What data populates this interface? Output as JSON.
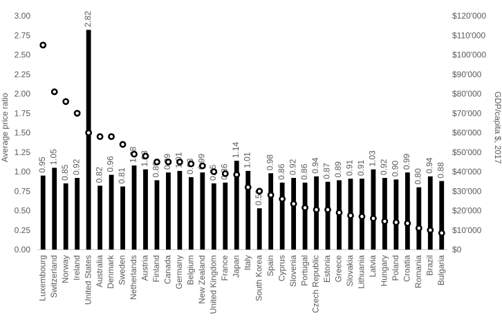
{
  "chart_data": {
    "type": "bar",
    "title": "",
    "xlabel": "",
    "ylabel": "Average price ratio",
    "y2label": "GDP/capita $, 2017",
    "ylim": [
      0,
      3.0
    ],
    "y2lim": [
      0,
      120000
    ],
    "yticks": [
      "0.00",
      "0.25",
      "0.50",
      "0.75",
      "1.00",
      "1.25",
      "1.50",
      "1.75",
      "2.00",
      "2.25",
      "2.50",
      "2.75",
      "3.00"
    ],
    "y2ticks": [
      "$0",
      "$10'000",
      "$20'000",
      "$30'000",
      "$40'000",
      "$50'000",
      "$60'000",
      "$70'000",
      "$80'000",
      "$90'000",
      "$100'000",
      "$110'000",
      "$120'000"
    ],
    "grid": false,
    "legend": "none",
    "colors": {
      "bar": "#000000",
      "marker_fill": "#ffffff",
      "marker_stroke": "#000000",
      "text": "#595959",
      "axis": "#bfbfbf"
    },
    "categories": [
      "Luxembourg",
      "Switzerland",
      "Norway",
      "Ireland",
      "United States",
      "Australia",
      "Denmark",
      "Sweden",
      "Netherlands",
      "Austria",
      "Finland",
      "Canada",
      "Germany",
      "Belgium",
      "New Zealand",
      "United Kingdom",
      "France",
      "Japan",
      "Italy",
      "South Korea",
      "Spain",
      "Cyprus",
      "Slovenia",
      "Portugal",
      "Czech Republic",
      "Estonia",
      "Greece",
      "Slovakia",
      "Lithuania",
      "Latvia",
      "Hungary",
      "Poland",
      "Croatia",
      "Romania",
      "Brazil",
      "Bulgaria"
    ],
    "series": [
      {
        "type": "bar",
        "axis": "left",
        "values": [
          0.95,
          1.05,
          0.85,
          0.92,
          2.82,
          0.82,
          0.96,
          0.81,
          1.08,
          1.03,
          0.89,
          0.99,
          1.01,
          0.93,
          0.99,
          0.85,
          0.86,
          1.14,
          1.01,
          0.53,
          0.98,
          0.86,
          0.92,
          0.86,
          0.94,
          0.87,
          0.89,
          0.91,
          0.91,
          1.03,
          0.92,
          0.9,
          0.99,
          0.8,
          0.94,
          0.88
        ],
        "labels": [
          "0.95",
          "1.05",
          "0.85",
          "0.92",
          "2.82",
          "0.82",
          "0.96",
          "0.81",
          "1.08",
          "1.03",
          "0.89",
          "0.99",
          "1.01",
          "0.93",
          "0.99",
          "0.85",
          "0.86",
          "1.14",
          "1.01",
          "0.53",
          "0.98",
          "0.86",
          "0.92",
          "0.86",
          "0.94",
          "0.87",
          "0.89",
          "0.91",
          "0.91",
          "1.03",
          "0.92",
          "0.90",
          "0.99",
          "0.80",
          "0.94",
          "0.88"
        ]
      },
      {
        "type": "scatter",
        "axis": "right",
        "values": [
          105000,
          81000,
          76000,
          70000,
          60000,
          58000,
          58000,
          54000,
          49000,
          48000,
          45000,
          45000,
          45000,
          44000,
          43000,
          40000,
          39000,
          38500,
          32000,
          30000,
          28000,
          26000,
          23500,
          21500,
          20500,
          20500,
          19000,
          17500,
          17000,
          16000,
          14500,
          14000,
          13500,
          11000,
          10000,
          8500
        ]
      }
    ]
  }
}
